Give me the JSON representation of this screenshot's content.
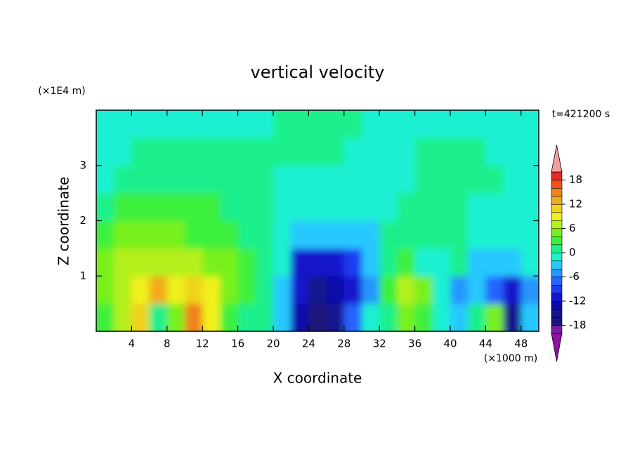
{
  "chart_data": {
    "type": "contour",
    "title": "vertical velocity",
    "xlabel": "X coordinate",
    "ylabel": "Z coordinate",
    "xunit": "(×1000 m)",
    "yunit": "(×1E4 m)",
    "annotation": "t=421200 s",
    "xlim": [
      0,
      50
    ],
    "ylim": [
      0,
      4
    ],
    "xticks": [
      4,
      8,
      12,
      16,
      20,
      24,
      28,
      32,
      36,
      40,
      44,
      48
    ],
    "yticks": [
      1,
      2,
      3
    ],
    "x": [
      1,
      3,
      5,
      7,
      9,
      11,
      13,
      15,
      17,
      19,
      21,
      23,
      25,
      27,
      29,
      31,
      33,
      35,
      37,
      39,
      41,
      43,
      45,
      47,
      49
    ],
    "y": [
      0.25,
      0.75,
      1.25,
      1.75,
      2.25,
      2.75,
      3.25,
      3.75
    ],
    "values": [
      [
        3,
        7,
        11,
        1,
        5,
        15,
        9,
        3,
        1,
        1,
        -3,
        -13,
        -17,
        -15,
        -7,
        -1,
        1,
        5,
        3,
        -1,
        -3,
        1,
        5,
        -15,
        -3
      ],
      [
        5,
        7,
        9,
        13,
        9,
        11,
        9,
        5,
        3,
        1,
        -3,
        -11,
        -15,
        -13,
        -11,
        -5,
        3,
        7,
        5,
        -1,
        -5,
        -3,
        -7,
        -11,
        -5
      ],
      [
        5,
        7,
        7,
        7,
        7,
        7,
        5,
        5,
        3,
        1,
        -1,
        -11,
        -11,
        -11,
        -9,
        -3,
        1,
        3,
        -1,
        -1,
        1,
        -3,
        -3,
        -3,
        -1
      ],
      [
        3,
        5,
        5,
        5,
        5,
        3,
        3,
        3,
        1,
        1,
        -1,
        -3,
        -3,
        -3,
        -3,
        -3,
        1,
        1,
        1,
        1,
        1,
        -1,
        -1,
        -1,
        -1
      ],
      [
        1,
        3,
        3,
        3,
        3,
        3,
        3,
        1,
        1,
        1,
        -1,
        -1,
        -1,
        -1,
        -1,
        -1,
        -1,
        1,
        1,
        1,
        1,
        -1,
        -1,
        -1,
        -1
      ],
      [
        -1,
        1,
        1,
        1,
        1,
        1,
        1,
        1,
        1,
        1,
        -1,
        -1,
        -1,
        -1,
        -1,
        -1,
        -1,
        -1,
        1,
        1,
        1,
        1,
        1,
        -1,
        -1
      ],
      [
        -1,
        -1,
        1,
        1,
        1,
        1,
        1,
        1,
        1,
        1,
        1,
        1,
        1,
        1,
        -1,
        -1,
        -1,
        -1,
        1,
        1,
        1,
        1,
        -1,
        -1,
        -1
      ],
      [
        -1,
        -1,
        -1,
        -1,
        -1,
        -1,
        -1,
        -1,
        -1,
        -1,
        1,
        1,
        1,
        1,
        1,
        -1,
        -1,
        -1,
        -1,
        -1,
        -1,
        -1,
        -1,
        -1,
        -1
      ]
    ],
    "levels": [
      -20,
      -18,
      -16,
      -14,
      -12,
      -10,
      -8,
      -6,
      -4,
      -2,
      0,
      2,
      4,
      6,
      8,
      10,
      12,
      14,
      16,
      18,
      20
    ],
    "colors": [
      "#7b1fa2",
      "#1e1478",
      "#14148c",
      "#0a0aaa",
      "#1414cc",
      "#1e3cf0",
      "#2864ff",
      "#2896ff",
      "#28c8ff",
      "#1ef0d2",
      "#1ef08c",
      "#3cf03c",
      "#78f01e",
      "#b4f01e",
      "#f0f01e",
      "#f0d21e",
      "#f0aa1e",
      "#f0821e",
      "#f0501e",
      "#e62828"
    ],
    "under_color": "#8c14a0",
    "over_color": "#f0a0a0",
    "cbar_ticks": [
      -18,
      -12,
      -6,
      0,
      6,
      12,
      18
    ]
  }
}
